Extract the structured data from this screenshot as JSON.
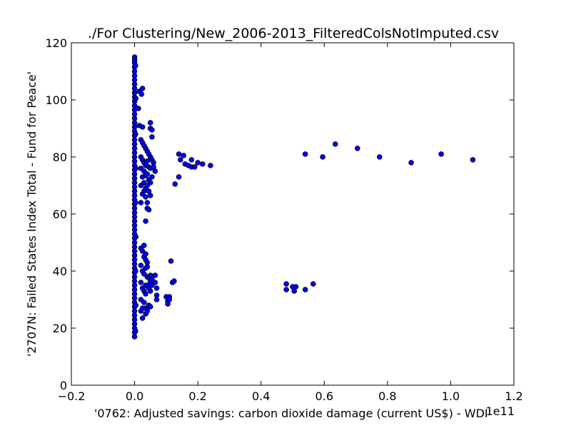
{
  "chart_data": {
    "type": "scatter",
    "title": "./For Clustering/New_2006-2013_FilteredColsNotImputed.csv",
    "xlabel": "'0762: Adjusted savings: carbon dioxide damage  (current US$) - WDI'",
    "ylabel": "'2707N: Failed States Index Total - Fund for Peace'",
    "x_offset_label": "1e11",
    "xlim": [
      -0.2,
      1.2
    ],
    "ylim": [
      0,
      120
    ],
    "x_ticks": [
      -0.2,
      0.0,
      0.2,
      0.4,
      0.6,
      0.8,
      1.0,
      1.2
    ],
    "x_tick_labels": [
      "−0.2",
      "0.0",
      "0.2",
      "0.4",
      "0.6",
      "0.8",
      "1.0",
      "1.2"
    ],
    "y_ticks": [
      0,
      20,
      40,
      60,
      80,
      100,
      120
    ],
    "y_tick_labels": [
      "0",
      "20",
      "40",
      "60",
      "80",
      "100",
      "120"
    ],
    "grid": false,
    "legend": "none",
    "marker_color": "#0000ff",
    "marker_edge_color": "#000000",
    "series": [
      {
        "points": [
          [
            0.0,
            115.0
          ],
          [
            0.0,
            114.0
          ],
          [
            0.0,
            113.0
          ],
          [
            0.0,
            111.5
          ],
          [
            0.0,
            110.0
          ],
          [
            0.0,
            108.5
          ],
          [
            0.0,
            107.0
          ],
          [
            0.0,
            105.5
          ],
          [
            0.0,
            104.0
          ],
          [
            0.0,
            102.5
          ],
          [
            0.0,
            101.0
          ],
          [
            0.0,
            99.5
          ],
          [
            0.0,
            98.0
          ],
          [
            0.0,
            96.5
          ],
          [
            0.0,
            95.0
          ],
          [
            0.0,
            93.5
          ],
          [
            0.0,
            92.0
          ],
          [
            0.0,
            90.5
          ],
          [
            0.0,
            89.0
          ],
          [
            0.0,
            87.5
          ],
          [
            0.0,
            86.0
          ],
          [
            0.0,
            84.5
          ],
          [
            0.0,
            83.0
          ],
          [
            0.0,
            81.5
          ],
          [
            0.0,
            80.0
          ],
          [
            0.0,
            78.5
          ],
          [
            0.0,
            77.0
          ],
          [
            0.0,
            75.5
          ],
          [
            0.0,
            74.0
          ],
          [
            0.0,
            72.5
          ],
          [
            0.0,
            71.0
          ],
          [
            0.0,
            69.5
          ],
          [
            0.0,
            68.0
          ],
          [
            0.0,
            66.5
          ],
          [
            0.0,
            65.0
          ],
          [
            0.0,
            63.5
          ],
          [
            0.0,
            62.0
          ],
          [
            0.0,
            60.5
          ],
          [
            0.0,
            59.0
          ],
          [
            0.0,
            57.5
          ],
          [
            0.0,
            56.0
          ],
          [
            0.0,
            54.5
          ],
          [
            0.0,
            53.0
          ],
          [
            0.0,
            51.5
          ],
          [
            0.0,
            50.0
          ],
          [
            0.0,
            48.5
          ],
          [
            0.0,
            47.0
          ],
          [
            0.0,
            45.5
          ],
          [
            0.0,
            44.0
          ],
          [
            0.0,
            42.5
          ],
          [
            0.0,
            41.0
          ],
          [
            0.0,
            39.5
          ],
          [
            0.0,
            38.0
          ],
          [
            0.0,
            36.5
          ],
          [
            0.0,
            35.0
          ],
          [
            0.0,
            33.5
          ],
          [
            0.0,
            32.0
          ],
          [
            0.0,
            30.5
          ],
          [
            0.0,
            29.0
          ],
          [
            0.0,
            27.5
          ],
          [
            0.0,
            26.0
          ],
          [
            0.0,
            24.5
          ],
          [
            0.0,
            23.0
          ],
          [
            0.0,
            21.5
          ],
          [
            0.0,
            20.0
          ],
          [
            0.0,
            18.5
          ],
          [
            0.0,
            17.0
          ],
          [
            0.003,
            112.0
          ],
          [
            0.004,
            100.5
          ],
          [
            0.003,
            88.0
          ],
          [
            0.004,
            76.0
          ],
          [
            0.003,
            64.0
          ],
          [
            0.004,
            52.0
          ],
          [
            0.003,
            40.0
          ],
          [
            0.004,
            28.0
          ],
          [
            0.003,
            19.0
          ],
          [
            0.015,
            103.0
          ],
          [
            0.012,
            97.0
          ],
          [
            0.015,
            91.0
          ],
          [
            0.02,
            86.0
          ],
          [
            0.02,
            80.0
          ],
          [
            0.02,
            76.0
          ],
          [
            0.02,
            70.0
          ],
          [
            0.02,
            64.0
          ],
          [
            0.02,
            48.0
          ],
          [
            0.02,
            42.0
          ],
          [
            0.02,
            36.0
          ],
          [
            0.02,
            30.0
          ],
          [
            0.02,
            26.0
          ],
          [
            0.025,
            104.0
          ],
          [
            0.022,
            102.0
          ],
          [
            0.025,
            90.5
          ],
          [
            0.025,
            85.0
          ],
          [
            0.025,
            79.0
          ],
          [
            0.025,
            73.0
          ],
          [
            0.025,
            67.0
          ],
          [
            0.025,
            47.0
          ],
          [
            0.025,
            40.0
          ],
          [
            0.025,
            34.0
          ],
          [
            0.025,
            27.0
          ],
          [
            0.025,
            23.5
          ],
          [
            0.03,
            84.0
          ],
          [
            0.03,
            78.0
          ],
          [
            0.03,
            75.0
          ],
          [
            0.03,
            71.0
          ],
          [
            0.03,
            68.0
          ],
          [
            0.03,
            49.0
          ],
          [
            0.03,
            45.0
          ],
          [
            0.03,
            39.0
          ],
          [
            0.03,
            33.0
          ],
          [
            0.03,
            29.0
          ],
          [
            0.035,
            83.0
          ],
          [
            0.035,
            77.0
          ],
          [
            0.035,
            73.5
          ],
          [
            0.035,
            69.0
          ],
          [
            0.035,
            66.0
          ],
          [
            0.035,
            57.5
          ],
          [
            0.035,
            46.0
          ],
          [
            0.035,
            44.0
          ],
          [
            0.035,
            41.0
          ],
          [
            0.035,
            35.0
          ],
          [
            0.035,
            32.0
          ],
          [
            0.035,
            27.0
          ],
          [
            0.035,
            25.0
          ],
          [
            0.04,
            82.0
          ],
          [
            0.04,
            78.5
          ],
          [
            0.04,
            74.0
          ],
          [
            0.04,
            70.0
          ],
          [
            0.04,
            64.0
          ],
          [
            0.04,
            62.0
          ],
          [
            0.04,
            43.0
          ],
          [
            0.04,
            41.5
          ],
          [
            0.04,
            38.0
          ],
          [
            0.04,
            35.0
          ],
          [
            0.04,
            26.0
          ],
          [
            0.045,
            81.0
          ],
          [
            0.045,
            76.5
          ],
          [
            0.045,
            72.0
          ],
          [
            0.045,
            68.0
          ],
          [
            0.045,
            61.5
          ],
          [
            0.045,
            37.5
          ],
          [
            0.045,
            34.0
          ],
          [
            0.045,
            28.0
          ],
          [
            0.05,
            92.0
          ],
          [
            0.05,
            90.0
          ],
          [
            0.05,
            80.0
          ],
          [
            0.05,
            76.0
          ],
          [
            0.05,
            71.0
          ],
          [
            0.05,
            66.5
          ],
          [
            0.05,
            38.5
          ],
          [
            0.05,
            36.0
          ],
          [
            0.05,
            33.0
          ],
          [
            0.05,
            27.5
          ],
          [
            0.055,
            89.5
          ],
          [
            0.055,
            87.0
          ],
          [
            0.055,
            79.0
          ],
          [
            0.055,
            73.0
          ],
          [
            0.055,
            37.0
          ],
          [
            0.055,
            35.0
          ],
          [
            0.06,
            78.0
          ],
          [
            0.06,
            76.5
          ],
          [
            0.065,
            75.0
          ],
          [
            0.065,
            38.5
          ],
          [
            0.065,
            36.0
          ],
          [
            0.07,
            34.0
          ],
          [
            0.07,
            31.5
          ],
          [
            0.07,
            30.0
          ],
          [
            0.1,
            31.0
          ],
          [
            0.105,
            29.5
          ],
          [
            0.105,
            28.5
          ],
          [
            0.11,
            31.0
          ],
          [
            0.11,
            30.0
          ],
          [
            0.115,
            43.5
          ],
          [
            0.12,
            36.0
          ],
          [
            0.125,
            36.5
          ],
          [
            0.128,
            70.5
          ],
          [
            0.14,
            73.0
          ],
          [
            0.14,
            81.0
          ],
          [
            0.145,
            79.0
          ],
          [
            0.155,
            80.5
          ],
          [
            0.16,
            77.5
          ],
          [
            0.17,
            77.0
          ],
          [
            0.18,
            79.0
          ],
          [
            0.18,
            76.5
          ],
          [
            0.19,
            76.5
          ],
          [
            0.2,
            78.0
          ],
          [
            0.215,
            77.5
          ],
          [
            0.24,
            77.0
          ],
          [
            0.48,
            35.5
          ],
          [
            0.48,
            33.5
          ],
          [
            0.5,
            34.5
          ],
          [
            0.505,
            33.0
          ],
          [
            0.51,
            34.5
          ],
          [
            0.54,
            33.5
          ],
          [
            0.54,
            81.0
          ],
          [
            0.565,
            35.5
          ],
          [
            0.595,
            80.0
          ],
          [
            0.635,
            84.5
          ],
          [
            0.705,
            83.0
          ],
          [
            0.775,
            80.0
          ],
          [
            0.875,
            78.0
          ],
          [
            0.97,
            81.0
          ],
          [
            1.07,
            79.0
          ]
        ]
      }
    ]
  }
}
